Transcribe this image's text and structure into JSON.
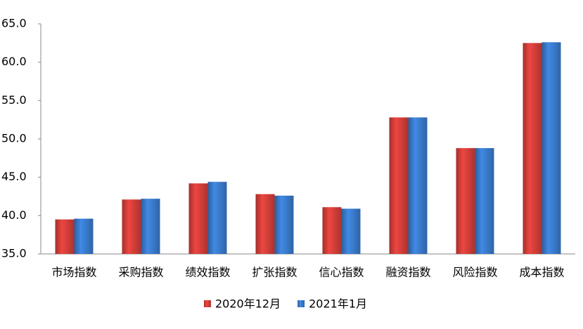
{
  "chart_data": {
    "type": "bar",
    "categories": [
      "市场指数",
      "采购指数",
      "绩效指数",
      "扩张指数",
      "信心指数",
      "融资指数",
      "风险指数",
      "成本指数"
    ],
    "series": [
      {
        "name": "2020年12月",
        "color": "#d8403b",
        "values": [
          39.5,
          42.1,
          44.2,
          42.8,
          41.1,
          52.8,
          48.8,
          62.5
        ]
      },
      {
        "name": "2021年1月",
        "color": "#3b7dd0",
        "values": [
          39.6,
          42.2,
          44.4,
          42.6,
          40.9,
          52.8,
          48.8,
          62.6
        ]
      }
    ],
    "ylim": [
      35,
      65
    ],
    "yticks": [
      {
        "value": 35,
        "label": "35.0"
      },
      {
        "value": 40,
        "label": "40.0"
      },
      {
        "value": 45,
        "label": "45.0"
      },
      {
        "value": 50,
        "label": "50.0"
      },
      {
        "value": 55,
        "label": "55.0"
      },
      {
        "value": 60,
        "label": "60.0"
      },
      {
        "value": 65,
        "label": "65.0"
      }
    ],
    "legend": "bottom"
  }
}
